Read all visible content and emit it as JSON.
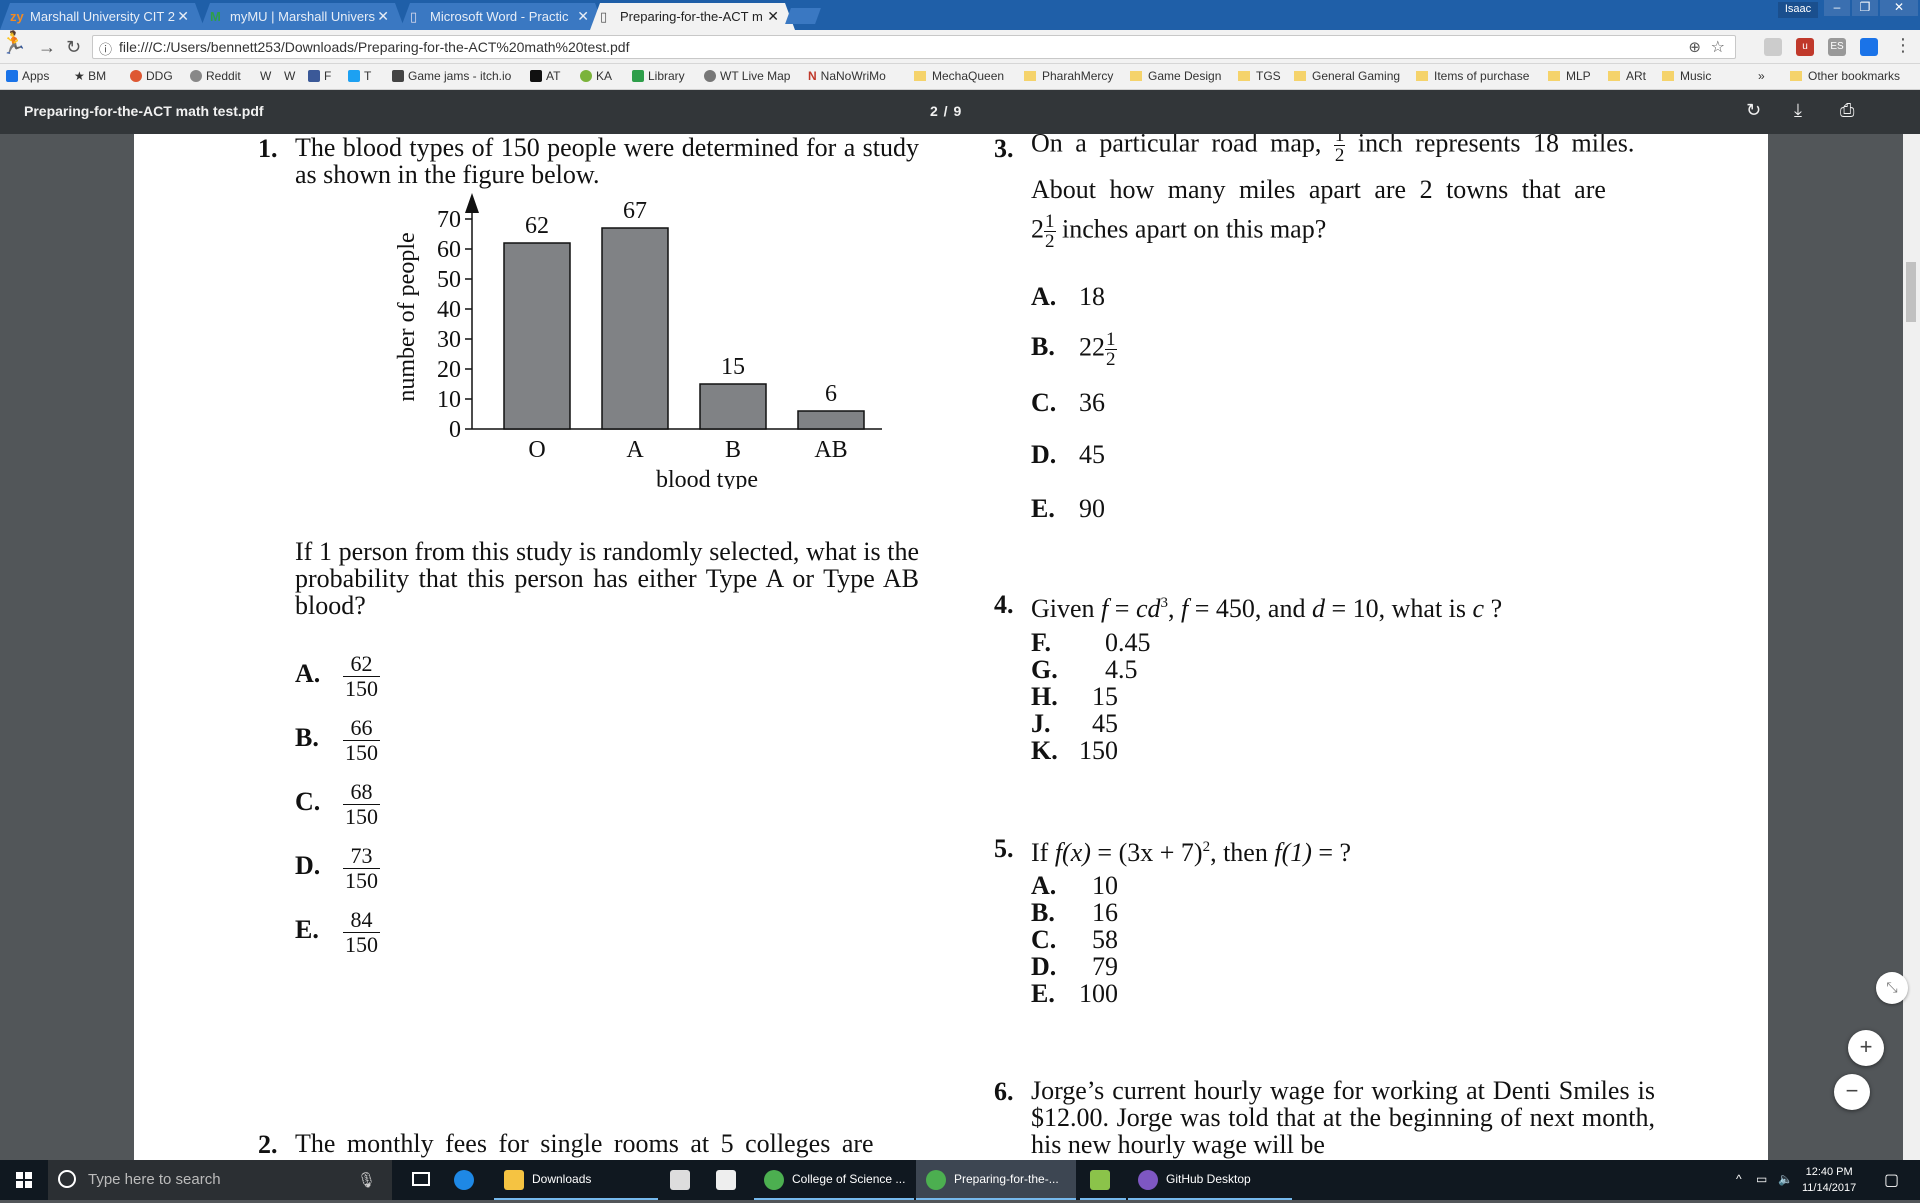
{
  "browser": {
    "tabs": [
      {
        "label": "Marshall University CIT 2",
        "favicon": "zy",
        "favicon_color": "#f08a24"
      },
      {
        "label": "myMU | Marshall Univers",
        "favicon": "M",
        "favicon_color": "#2e9e4a"
      },
      {
        "label": "Microsoft Word - Practic",
        "favicon": "doc",
        "favicon_color": "#ffffff"
      },
      {
        "label": "Preparing-for-the-ACT m",
        "favicon": "doc",
        "favicon_color": "#555555"
      }
    ],
    "profile_name": "Isaac",
    "url": "file:///C:/Users/bennett253/Downloads/Preparing-for-the-ACT%20math%20test.pdf",
    "bookmarks": [
      {
        "label": "Apps",
        "color": "#1a73e8"
      },
      {
        "label": "BM",
        "color": "#333333"
      },
      {
        "label": "DDG",
        "color": "#de5833"
      },
      {
        "label": "Reddit",
        "color": "#555555"
      },
      {
        "label": "W",
        "color": "#333333"
      },
      {
        "label": "W",
        "color": "#ffffff"
      },
      {
        "label": "F",
        "color": "#3b5998"
      },
      {
        "label": "T",
        "color": "#1da1f2"
      },
      {
        "label": "Game jams - itch.io",
        "color": "#444444"
      },
      {
        "label": "AT",
        "color": "#111111"
      },
      {
        "label": "KA",
        "color": "#7bb33a"
      },
      {
        "label": "Library",
        "color": "#2e9e4a"
      },
      {
        "label": "WT Live Map",
        "color": "#555555"
      },
      {
        "label": "NaNoWriMo",
        "color": "#c0392b"
      },
      {
        "label": "MechaQueen",
        "folder": true
      },
      {
        "label": "PharahMercy",
        "folder": true
      },
      {
        "label": "Game Design",
        "folder": true
      },
      {
        "label": "TGS",
        "folder": true
      },
      {
        "label": "General Gaming",
        "folder": true
      },
      {
        "label": "Items of purchase",
        "folder": true
      },
      {
        "label": "MLP",
        "folder": true
      },
      {
        "label": "ARt",
        "folder": true
      },
      {
        "label": "Music",
        "folder": true
      }
    ],
    "bookmarks_more": "»",
    "other_bookmarks": "Other bookmarks"
  },
  "pdf_viewer": {
    "filename": "Preparing-for-the-ACT math test.pdf",
    "page_indicator": "2 / 9"
  },
  "questions": {
    "q1": {
      "number": "1.",
      "text": "The blood types of 150 people were determined for a study as shown in the figure below.",
      "followup": "If 1 person from this study is randomly selected, what is the probability that this person has either Type A or Type AB blood?",
      "options": [
        {
          "letter": "A.",
          "num": "62",
          "den": "150"
        },
        {
          "letter": "B.",
          "num": "66",
          "den": "150"
        },
        {
          "letter": "C.",
          "num": "68",
          "den": "150"
        },
        {
          "letter": "D.",
          "num": "73",
          "den": "150"
        },
        {
          "letter": "E.",
          "num": "84",
          "den": "150"
        }
      ]
    },
    "q2": {
      "number": "2.",
      "text": "The monthly fees for single rooms at 5 colleges are"
    },
    "q3": {
      "number": "3.",
      "text_part1": "On a particular road map,",
      "frac_num": "1",
      "frac_den": "2",
      "text_part2": "inch represents 18 miles.",
      "line2": "About how many miles apart are 2 towns that are",
      "mixed_whole": "2",
      "line3_tail": "inches apart on this map?",
      "options": [
        {
          "letter": "A.",
          "value": "18"
        },
        {
          "letter": "B.",
          "value": "22",
          "frac_num": "1",
          "frac_den": "2"
        },
        {
          "letter": "C.",
          "value": "36"
        },
        {
          "letter": "D.",
          "value": "45"
        },
        {
          "letter": "E.",
          "value": "90"
        }
      ]
    },
    "q4": {
      "number": "4.",
      "text_given": "Given",
      "eq1_lhs": "f",
      "eq1_rhs": "cd",
      "eq1_exp": "3",
      "eq2_lhs": "f",
      "eq2_rhs": "450, and",
      "eq3_lhs": "d",
      "eq3_rhs": "10, what is",
      "var": "c",
      "qmark": "?",
      "options": [
        {
          "letter": "F.",
          "value": "0.45"
        },
        {
          "letter": "G.",
          "value": "4.5"
        },
        {
          "letter": "H.",
          "value": "15"
        },
        {
          "letter": "J.",
          "value": "45"
        },
        {
          "letter": "K.",
          "value": "150"
        }
      ]
    },
    "q5": {
      "number": "5.",
      "text_if": "If",
      "fx": "f(x)",
      "expr": "(3x + 7)",
      "exp": "2",
      "then": ", then",
      "f1": "f(1)",
      "tail": "= ?",
      "options": [
        {
          "letter": "A.",
          "value": "10"
        },
        {
          "letter": "B.",
          "value": "16"
        },
        {
          "letter": "C.",
          "value": "58"
        },
        {
          "letter": "D.",
          "value": "79"
        },
        {
          "letter": "E.",
          "value": "100"
        }
      ]
    },
    "q6": {
      "number": "6.",
      "text": "Jorge’s current hourly wage for working at Denti Smiles is $12.00. Jorge was told that at the beginning of next month, his new hourly wage will be"
    }
  },
  "chart_data": {
    "type": "bar",
    "categories": [
      "O",
      "A",
      "B",
      "AB"
    ],
    "values": [
      62,
      67,
      15,
      6
    ],
    "data_labels": [
      "62",
      "67",
      "15",
      "6"
    ],
    "xlabel": "blood type",
    "ylabel": "number of people",
    "yticks": [
      0,
      10,
      20,
      30,
      40,
      50,
      60,
      70
    ],
    "ylim": [
      0,
      70
    ],
    "bar_color": "#808285",
    "grid": false
  },
  "taskbar": {
    "search_placeholder": "Type here to search",
    "items": [
      {
        "label": "Downloads",
        "color": "#f5c342"
      },
      {
        "label": "College of Science ...",
        "color": "#4caf50"
      },
      {
        "label": "Preparing-for-the-...",
        "color": "#4caf50"
      },
      {
        "label": "",
        "color": "#8bc34a"
      },
      {
        "label": "GitHub Desktop",
        "color": "#7e57c2"
      }
    ],
    "time": "12:40 PM",
    "date": "11/14/2017"
  }
}
